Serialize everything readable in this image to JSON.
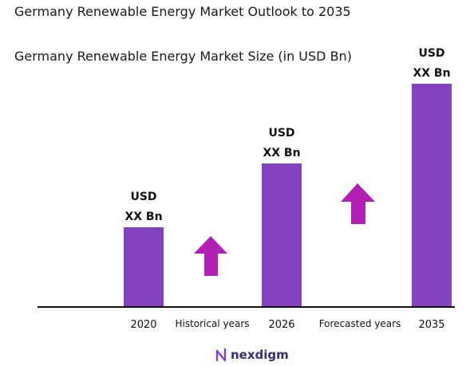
{
  "header": {
    "title": "Germany Renewable Energy Market Outlook to 2035",
    "subtitle": "Germany Renewable Energy Market Size (in USD Bn)"
  },
  "chart_data": {
    "type": "bar",
    "categories": [
      "2020",
      "2026",
      "2035"
    ],
    "values": [
      1.0,
      1.8,
      2.8
    ],
    "value_labels": [
      [
        "USD",
        "XX Bn"
      ],
      [
        "USD",
        "XX Bn"
      ],
      [
        "USD",
        "XX Bn"
      ]
    ],
    "ylim": [
      0,
      3
    ],
    "grid": false,
    "period_labels": [
      "Historical years",
      "Forecasted years"
    ],
    "colors": {
      "bar": "#8343be",
      "arrow": "#b11fb5",
      "axis": "#111111"
    },
    "icons": [
      "up-arrow-icon",
      "up-arrow-icon"
    ]
  },
  "brand": {
    "name": "nexdigm",
    "icon": "nexdigm-logo-icon"
  }
}
